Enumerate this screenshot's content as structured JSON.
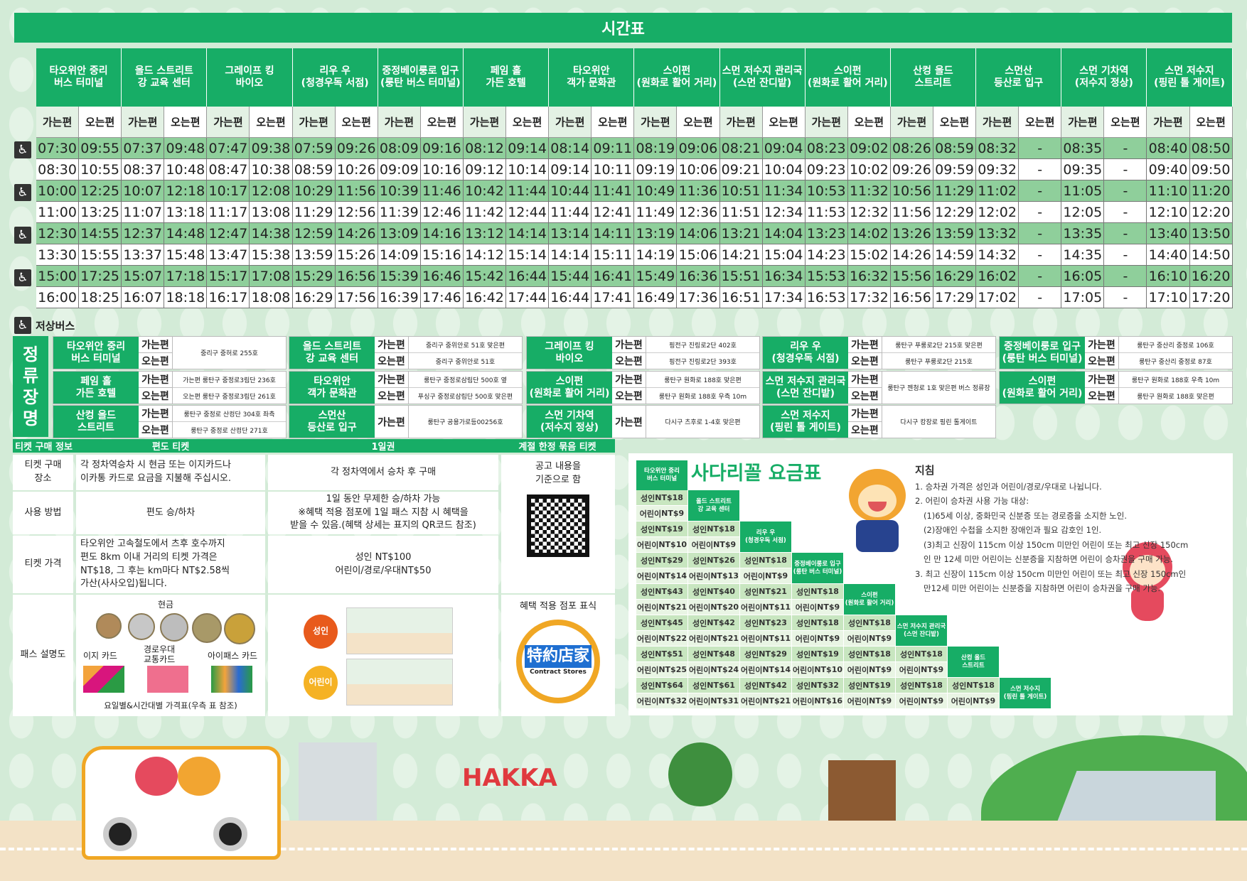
{
  "title": "시간표",
  "colors": {
    "accent": "#17ad66",
    "row_green": "#8fcf9b",
    "adult": "#e85a1c",
    "child": "#f5b224"
  },
  "timetable": {
    "stops": [
      "타오위안 중리\n버스 터미널",
      "올드 스트리트\n강 교육 센터",
      "그레이프 킹\n바이오",
      "리우 우\n(청경우독 서점)",
      "중정베이룽로 입구\n(룽탄 버스 터미널)",
      "페임 홀\n가든 호텔",
      "타오위안\n객가 문화관",
      "스이펀\n(원화로 활어 거리)",
      "스먼 저수지 관리국\n(스먼 잔디밭)",
      "스이펀\n(원화로 활어 거리)",
      "산컹 올드\n스트리트",
      "스먼산\n등산로 입구",
      "스먼 기차역\n(저수지 정상)",
      "스먼 저수지\n(핑린 톨 게이트)"
    ],
    "dir_go": "가는편",
    "dir_return": "오는편",
    "low_floor_icon": "wheelchair-icon",
    "rows": [
      {
        "low_floor": true,
        "times": [
          "07:30",
          "09:55",
          "07:37",
          "09:48",
          "07:47",
          "09:38",
          "07:59",
          "09:26",
          "08:09",
          "09:16",
          "08:12",
          "09:14",
          "08:14",
          "09:11",
          "08:19",
          "09:06",
          "08:21",
          "09:04",
          "08:23",
          "09:02",
          "08:26",
          "08:59",
          "08:32",
          "-",
          "08:35",
          "-",
          "08:40",
          "08:50"
        ]
      },
      {
        "low_floor": false,
        "times": [
          "08:30",
          "10:55",
          "08:37",
          "10:48",
          "08:47",
          "10:38",
          "08:59",
          "10:26",
          "09:09",
          "10:16",
          "09:12",
          "10:14",
          "09:14",
          "10:11",
          "09:19",
          "10:06",
          "09:21",
          "10:04",
          "09:23",
          "10:02",
          "09:26",
          "09:59",
          "09:32",
          "-",
          "09:35",
          "-",
          "09:40",
          "09:50"
        ]
      },
      {
        "low_floor": true,
        "times": [
          "10:00",
          "12:25",
          "10:07",
          "12:18",
          "10:17",
          "12:08",
          "10:29",
          "11:56",
          "10:39",
          "11:46",
          "10:42",
          "11:44",
          "10:44",
          "11:41",
          "10:49",
          "11:36",
          "10:51",
          "11:34",
          "10:53",
          "11:32",
          "10:56",
          "11:29",
          "11:02",
          "-",
          "11:05",
          "-",
          "11:10",
          "11:20"
        ]
      },
      {
        "low_floor": false,
        "times": [
          "11:00",
          "13:25",
          "11:07",
          "13:18",
          "11:17",
          "13:08",
          "11:29",
          "12:56",
          "11:39",
          "12:46",
          "11:42",
          "12:44",
          "11:44",
          "12:41",
          "11:49",
          "12:36",
          "11:51",
          "12:34",
          "11:53",
          "12:32",
          "11:56",
          "12:29",
          "12:02",
          "-",
          "12:05",
          "-",
          "12:10",
          "12:20"
        ]
      },
      {
        "low_floor": true,
        "times": [
          "12:30",
          "14:55",
          "12:37",
          "14:48",
          "12:47",
          "14:38",
          "12:59",
          "14:26",
          "13:09",
          "14:16",
          "13:12",
          "14:14",
          "13:14",
          "14:11",
          "13:19",
          "14:06",
          "13:21",
          "14:04",
          "13:23",
          "14:02",
          "13:26",
          "13:59",
          "13:32",
          "-",
          "13:35",
          "-",
          "13:40",
          "13:50"
        ]
      },
      {
        "low_floor": false,
        "times": [
          "13:30",
          "15:55",
          "13:37",
          "15:48",
          "13:47",
          "15:38",
          "13:59",
          "15:26",
          "14:09",
          "15:16",
          "14:12",
          "15:14",
          "14:14",
          "15:11",
          "14:19",
          "15:06",
          "14:21",
          "15:04",
          "14:23",
          "15:02",
          "14:26",
          "14:59",
          "14:32",
          "-",
          "14:35",
          "-",
          "14:40",
          "14:50"
        ]
      },
      {
        "low_floor": true,
        "times": [
          "15:00",
          "17:25",
          "15:07",
          "17:18",
          "15:17",
          "17:08",
          "15:29",
          "16:56",
          "15:39",
          "16:46",
          "15:42",
          "16:44",
          "15:44",
          "16:41",
          "15:49",
          "16:36",
          "15:51",
          "16:34",
          "15:53",
          "16:32",
          "15:56",
          "16:29",
          "16:02",
          "-",
          "16:05",
          "-",
          "16:10",
          "16:20"
        ]
      },
      {
        "low_floor": false,
        "times": [
          "16:00",
          "18:25",
          "16:07",
          "18:18",
          "16:17",
          "18:08",
          "16:29",
          "17:56",
          "16:39",
          "17:46",
          "16:42",
          "17:44",
          "16:44",
          "17:41",
          "16:49",
          "17:36",
          "16:51",
          "17:34",
          "16:53",
          "17:32",
          "16:56",
          "17:29",
          "17:02",
          "-",
          "17:05",
          "-",
          "17:10",
          "17:20"
        ]
      }
    ]
  },
  "low_floor_label": "저상버스",
  "stop_section": {
    "title": "정\n류\n장\n명",
    "groups": [
      {
        "name": "타오위안 중리\n버스 터미널",
        "dirs": [
          "가는편",
          "오는편"
        ],
        "addrs": [
          "중리구 중허로 255호"
        ]
      },
      {
        "name": "올드 스트리트\n강 교육 센터",
        "dirs": [
          "가는편",
          "오는편"
        ],
        "addrs": [
          "중리구 중위안로 51호 맞은편",
          "중리구 중위안로 51호"
        ]
      },
      {
        "name": "그레이프 킹\n바이오",
        "dirs": [
          "가는편",
          "오는편"
        ],
        "addrs": [
          "핑전구 진링로2단 402호",
          "핑전구 진링로2단 393호"
        ]
      },
      {
        "name": "리우 우\n(청경우독 서점)",
        "dirs": [
          "가는편",
          "오는편"
        ],
        "addrs": [
          "룽탄구 푸룽로2단 215호 맞은편",
          "룽탄구 푸룽로2단 215호"
        ]
      },
      {
        "name": "중정베이룽로 입구\n(룽탄 버스 터미널)",
        "dirs": [
          "가는편",
          "오는편"
        ],
        "addrs": [
          "룽탄구 중산리 중정로 106호",
          "룽탄구 중산리 중정로 87호"
        ]
      },
      {
        "name": "페임 홀\n가든 호텔",
        "dirs": [
          "가는편",
          "오는편"
        ],
        "addrs": [
          "가는편  룽탄구 중정로3림단 236호",
          "오는편  룽탄구 중정로3림단 261호"
        ]
      },
      {
        "name": "타오위안\n객가 문화관",
        "dirs": [
          "가는편",
          "오는편"
        ],
        "addrs": [
          "룽탄구 중정로삼림단 500호 옆",
          "푸싱구 중정로삼림단 500호 맞은편"
        ]
      },
      {
        "name": "스이펀\n(원화로 활어 거리)",
        "dirs": [
          "가는편",
          "오는편"
        ],
        "addrs": [
          "룽탄구 원화로 188호 맞은편",
          "룽탄구 원화로 188호 우측 10m"
        ]
      },
      {
        "name": "스먼 저수지 관리국\n(스먼 잔디밭)",
        "dirs": [
          "가는편",
          "오는편"
        ],
        "addrs": [
          "룽탄구 젠청로 1호 맞은편 버스 정류장"
        ]
      },
      {
        "name": "스이펀\n(원화로 활어 거리)",
        "dirs": [
          "가는편",
          "오는편"
        ],
        "addrs": [
          "룽탄구 원화로 188호 우측 10m",
          "룽탄구 원화로 188호 맞은편"
        ]
      },
      {
        "name": "산컹 올드\n스트리트",
        "dirs": [
          "가는편",
          "오는편"
        ],
        "addrs": [
          "룽탄구 중정로 산컹단 304호 좌측",
          "룽탄구 중정로 산컹단 271호"
        ]
      },
      {
        "name": "스먼산\n등산로 입구",
        "dirs": [
          "가는편"
        ],
        "addrs": [
          "룽탄구 공용가로등00256호"
        ]
      },
      {
        "name": "스먼 기차역\n(저수지 정상)",
        "dirs": [
          "가는편"
        ],
        "addrs": [
          "다시구 츠후로 1-4호 맞은편"
        ]
      },
      {
        "name": "스먼 저수지\n(핑린 톨 게이트)",
        "dirs": [
          "가는편",
          "오는편"
        ],
        "addrs": [
          "다시구 캉장로 핑린 톨게이트"
        ]
      }
    ]
  },
  "tickets": {
    "headers": [
      "티켓 구매 정보",
      "편도 티켓",
      "1일권",
      "계절 한정 묶음 티켓"
    ],
    "row_labels": [
      "티켓 구매\n장소",
      "사용 방법",
      "티켓 가격",
      "패스 설명도"
    ],
    "single": [
      "각 정차역승차 시 현금 또는 이지카드나\n이카통 카드로 요금을 지불해 주십시오.",
      "편도 승/하차",
      "타오위안 고속철도에서 츠후 호수까지\n편도 8km 이내 거리의 티켓 가격은\nNT$18, 그 후는 km마다 NT$2.58씩\n가산(사사오입)됩니다."
    ],
    "day": [
      "각 정차역에서 승차 후 구매",
      "1일 동안 무제한 승/하차 가능\n※혜택 적용 점포에 1일 패스 지참 시 혜택을\n받을 수 있음.(혜택 상세는 표지의 QR코드 참조)",
      "성인 NT$100\n어린이/경로/우대NT$50"
    ],
    "season": "공고 내용을\n기준으로 함",
    "pass": {
      "cash": "현금",
      "easy": "이지 카드",
      "senior": "경로우대\n교통카드",
      "ipass": "아이패스 카드",
      "footer": "요일별&시간대별 가격표(우측 표 참조)",
      "adult": "성인",
      "child": "어린이",
      "store_mark": "혜택 적용 점포 표식",
      "store_logo": "特約店家",
      "store_logo_en": "Contract Stores"
    }
  },
  "fare": {
    "origin": "타오위안 중리\n버스 터미널",
    "title": "사다리꼴 요금표",
    "adult_prefix": "성인 ",
    "child_prefix": "어린이 ",
    "rows": [
      {
        "stop": "올드 스트리트\n강 교육 센터",
        "prices": [
          [
            "NT$18",
            "NT$9"
          ]
        ]
      },
      {
        "stop": "리우 우\n(청경우독 서점)",
        "prices": [
          [
            "NT$19",
            "NT$10"
          ],
          [
            "NT$18",
            "NT$9"
          ]
        ]
      },
      {
        "stop": "중정베이룽로 입구\n(룽탄 버스 터미널)",
        "prices": [
          [
            "NT$29",
            "NT$14"
          ],
          [
            "NT$26",
            "NT$13"
          ],
          [
            "NT$18",
            "NT$9"
          ]
        ]
      },
      {
        "stop": "스이펀\n(원화로 활어 거리)",
        "prices": [
          [
            "NT$43",
            "NT$21"
          ],
          [
            "NT$40",
            "NT$20"
          ],
          [
            "NT$21",
            "NT$11"
          ],
          [
            "NT$18",
            "NT$9"
          ]
        ]
      },
      {
        "stop": "스먼 저수지 관리국\n(스먼 잔디밭)",
        "prices": [
          [
            "NT$45",
            "NT$22"
          ],
          [
            "NT$42",
            "NT$21"
          ],
          [
            "NT$23",
            "NT$11"
          ],
          [
            "NT$18",
            "NT$9"
          ],
          [
            "NT$18",
            "NT$9"
          ]
        ]
      },
      {
        "stop": "산컹 올드\n스트리트",
        "prices": [
          [
            "NT$51",
            "NT$25"
          ],
          [
            "NT$48",
            "NT$24"
          ],
          [
            "NT$29",
            "NT$14"
          ],
          [
            "NT$19",
            "NT$10"
          ],
          [
            "NT$18",
            "NT$9"
          ],
          [
            "NT$18",
            "NT$9"
          ]
        ]
      },
      {
        "stop": "스먼 저수지\n(핑린 톨 게이트)",
        "prices": [
          [
            "NT$64",
            "NT$32"
          ],
          [
            "NT$61",
            "NT$31"
          ],
          [
            "NT$42",
            "NT$21"
          ],
          [
            "NT$32",
            "NT$16"
          ],
          [
            "NT$19",
            "NT$9"
          ],
          [
            "NT$18",
            "NT$9"
          ],
          [
            "NT$18",
            "NT$9"
          ]
        ]
      }
    ]
  },
  "notes": {
    "title": "지침",
    "lines": [
      {
        "indent": false,
        "text": "1. 승차권 가격은 성인과 어린이/경로/우대로 나뉩니다."
      },
      {
        "indent": false,
        "text": "2. 어린이 승차권 사용 가능 대상:"
      },
      {
        "indent": true,
        "text": "(1)65세 이상, 중화민국 신분증 또는 경로증을 소지한 노인."
      },
      {
        "indent": true,
        "text": "(2)장애인 수첩을 소지한 장애인과 필요 감호인 1인."
      },
      {
        "indent": true,
        "text": "(3)최고 신장이 115cm 이상 150cm 미만인 어린이 또는 최고 신장 150cm"
      },
      {
        "indent": true,
        "text": "인 만 12세 미만 어린이는 신분증을 지참하면 어린이 승차권을 구매 가능."
      },
      {
        "indent": false,
        "text": "3. 최고 신장이 115cm 이상 150cm 미만인 어린이 또는 최고 신장 150cm인"
      },
      {
        "indent": true,
        "text": "만12세 미만 어린이는 신분증을 지참하면 어린이 승차권을 구매 가능."
      }
    ]
  },
  "scenery": {
    "logo_text": "HAKKA"
  }
}
